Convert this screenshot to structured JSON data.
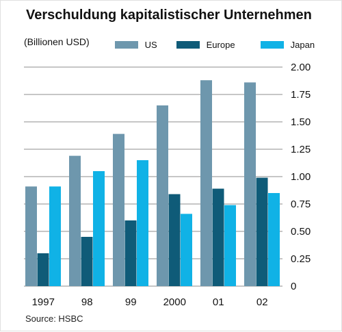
{
  "chart_data": {
    "type": "bar",
    "title": "Verschuldung kapitalistischer Unternehmen",
    "unit_label": "(Billionen USD)",
    "source": "Source: HSBC",
    "categories": [
      "1997",
      "98",
      "99",
      "2000",
      "01",
      "02"
    ],
    "series": [
      {
        "name": "US",
        "color": "#6e97ad",
        "values": [
          0.91,
          1.19,
          1.39,
          1.65,
          1.88,
          1.86
        ]
      },
      {
        "name": "Europe",
        "color": "#0f5b78",
        "values": [
          0.3,
          0.45,
          0.6,
          0.84,
          0.89,
          0.99
        ]
      },
      {
        "name": "Japan",
        "color": "#10b2e6",
        "values": [
          0.91,
          1.05,
          1.15,
          0.66,
          0.74,
          0.85
        ]
      }
    ],
    "yticks": [
      "2.00",
      "1.75",
      "1.50",
      "1.25",
      "1.00",
      "0.75",
      "0.50",
      "0.25",
      "0"
    ],
    "ylim": [
      0,
      2.0
    ],
    "grid": true,
    "axis_position": "right",
    "legend_position": "top"
  }
}
